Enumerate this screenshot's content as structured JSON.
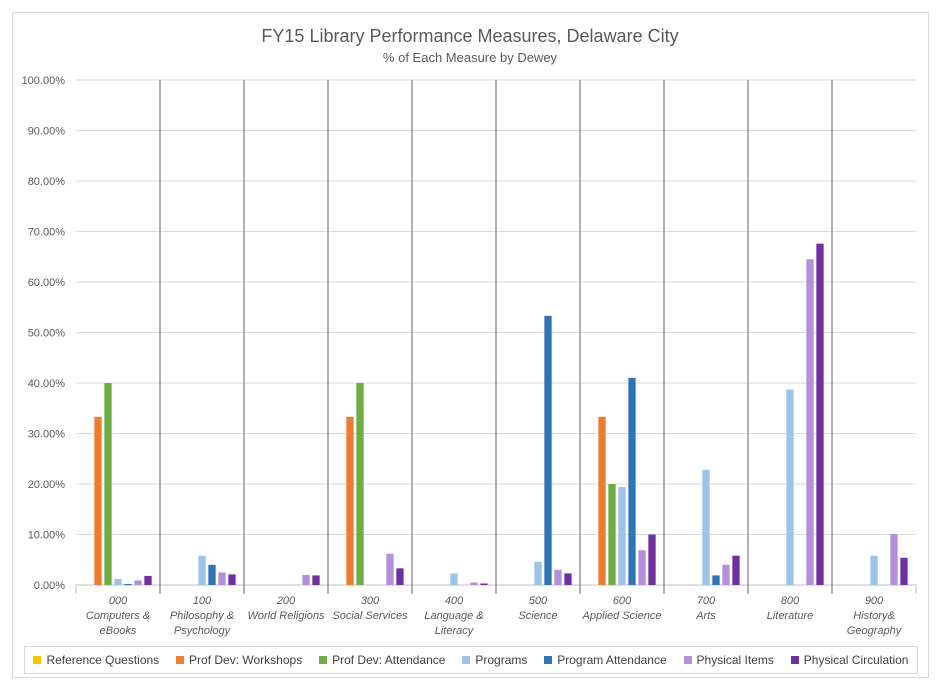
{
  "chart_data": {
    "type": "bar",
    "title": "FY15 Library Performance Measures, Delaware City",
    "subtitle": "% of Each Measure by Dewey",
    "xlabel": "",
    "ylabel": "",
    "ylim": [
      0,
      100
    ],
    "ytick_labels": [
      "0.00%",
      "10.00%",
      "20.00%",
      "30.00%",
      "40.00%",
      "50.00%",
      "60.00%",
      "70.00%",
      "80.00%",
      "90.00%",
      "100.00%"
    ],
    "grid": true,
    "legend_position": "bottom",
    "categories": [
      [
        "000",
        "Computers &",
        "eBooks"
      ],
      [
        "100",
        "Philosophy &",
        "Psychology"
      ],
      [
        "200",
        "World Religions"
      ],
      [
        "300",
        "Social Services"
      ],
      [
        "400",
        "Language &",
        "Literacy"
      ],
      [
        "500",
        "Science"
      ],
      [
        "600",
        "Applied Science"
      ],
      [
        "700",
        "Arts"
      ],
      [
        "800",
        "Literature"
      ],
      [
        "900",
        "History&",
        "Geography"
      ]
    ],
    "series": [
      {
        "name": "Reference Questions",
        "color": "#ffc000",
        "values": [
          0,
          0,
          0,
          0,
          0,
          0,
          0,
          0,
          0,
          0
        ]
      },
      {
        "name": "Prof Dev: Workshops",
        "color": "#ed7d31",
        "values": [
          33.3,
          0,
          0,
          33.3,
          0,
          0,
          33.3,
          0,
          0,
          0
        ]
      },
      {
        "name": "Prof Dev: Attendance",
        "color": "#70ad47",
        "values": [
          40,
          0,
          0,
          40,
          0,
          0,
          20,
          0,
          0,
          0
        ]
      },
      {
        "name": "Programs",
        "color": "#9dc3e6",
        "values": [
          1.2,
          5.8,
          0,
          0,
          2.3,
          4.6,
          19.4,
          22.8,
          38.7,
          5.8
        ]
      },
      {
        "name": "Program Attendance",
        "color": "#2e75b6",
        "values": [
          0.2,
          4,
          0,
          0,
          0,
          53.3,
          41,
          1.9,
          0,
          0
        ]
      },
      {
        "name": "Physical Items",
        "color": "#b48fdb",
        "values": [
          0.9,
          2.5,
          2,
          6.2,
          0.5,
          3,
          6.9,
          4,
          64.5,
          10.1
        ]
      },
      {
        "name": "Physical Circulation",
        "color": "#7030a0",
        "values": [
          1.8,
          2.1,
          1.9,
          3.3,
          0.3,
          2.3,
          10,
          5.8,
          67.6,
          5.4
        ]
      }
    ]
  }
}
